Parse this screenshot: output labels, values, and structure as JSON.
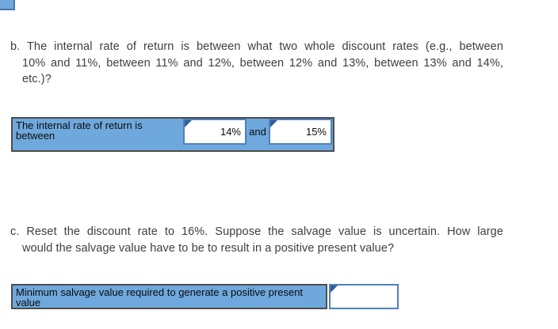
{
  "page": {
    "background": "#ffffff"
  },
  "colors": {
    "row_blue": "#6fa8dc",
    "input_border_blue": "#4f81bd",
    "answer_marker_blue": "#2f5e9e",
    "row_border_dark": "#4d4d4d",
    "question_text": "#3e3e3e"
  },
  "question_b": {
    "lines": [
      "b. The internal rate of return is between what two whole discount rates (e.g., between",
      "10% and 11%, between 11% and 12%, between 12% and 13%, between 13% and 14%,",
      "etc.)?"
    ]
  },
  "irr_row": {
    "label": "The internal rate of return is between",
    "input_low_value": "14%",
    "connector_label": "and",
    "input_high_value": "15%"
  },
  "question_c": {
    "lines": [
      "c. Reset the discount rate to 16%. Suppose the salvage value is uncertain. How large",
      "would the salvage value have to be to result in a positive present value?"
    ]
  },
  "salvage_row": {
    "label": "Minimum salvage value required to generate a positive present value",
    "input_value": ""
  }
}
